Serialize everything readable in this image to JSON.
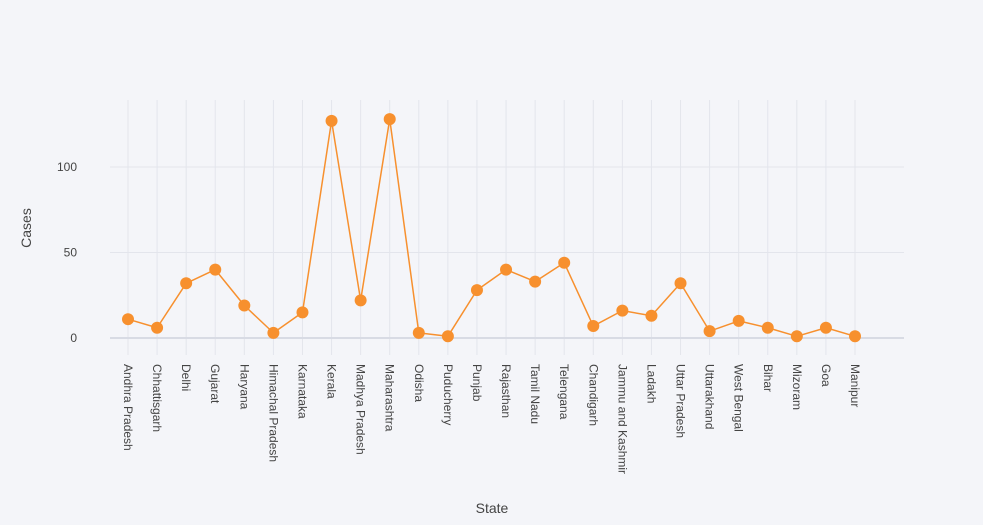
{
  "chart_data": {
    "type": "line",
    "title": "",
    "xlabel": "State",
    "ylabel": "Cases",
    "ylim": [
      -8,
      140
    ],
    "yticks": [
      0,
      50,
      100
    ],
    "grid": true,
    "legend": "none",
    "colors": {
      "line": "#f7902e",
      "marker": "#f7902e",
      "background": "#f4f5f9",
      "grid": "#e3e5ec"
    },
    "categories": [
      "Andhra Pradesh",
      "Chhattisgarh",
      "Delhi",
      "Gujarat",
      "Haryana",
      "Himachal Pradesh",
      "Karnataka",
      "Kerala",
      "Madhya Pradesh",
      "Maharashtra",
      "Odisha",
      "Puducherry",
      "Punjab",
      "Rajasthan",
      "Tamil Nadu",
      "Telengana",
      "Chandigarh",
      "Jammu and Kashmir",
      "Ladakh",
      "Uttar Pradesh",
      "Uttarakhand",
      "West Bengal",
      "Bihar",
      "Mizoram",
      "Goa",
      "Manipur"
    ],
    "series": [
      {
        "values": [
          11,
          6,
          32,
          40,
          19,
          3,
          15,
          127,
          22,
          128,
          3,
          1,
          28,
          40,
          33,
          44,
          7,
          16,
          13,
          32,
          4,
          10,
          6,
          1,
          6,
          1
        ]
      }
    ]
  }
}
